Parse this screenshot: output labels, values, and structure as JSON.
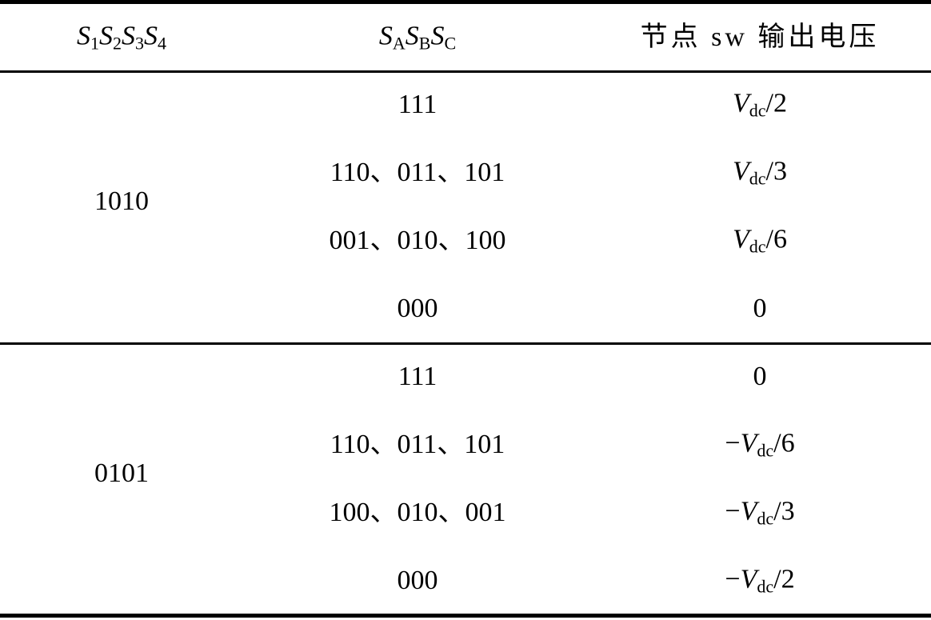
{
  "table": {
    "header": [
      [
        {
          "text": "S",
          "style": "italic"
        },
        {
          "text": "1",
          "style": "sub"
        },
        {
          "text": "S",
          "style": "italic"
        },
        {
          "text": "2",
          "style": "sub"
        },
        {
          "text": "S",
          "style": "italic"
        },
        {
          "text": "3",
          "style": "sub"
        },
        {
          "text": "S",
          "style": "italic"
        },
        {
          "text": "4",
          "style": "sub"
        }
      ],
      [
        {
          "text": "S",
          "style": "italic"
        },
        {
          "text": "A",
          "style": "sub"
        },
        {
          "text": "S",
          "style": "italic"
        },
        {
          "text": "B",
          "style": "sub"
        },
        {
          "text": "S",
          "style": "italic"
        },
        {
          "text": "C",
          "style": "sub"
        }
      ],
      "节点 sw 输出电压"
    ],
    "groups": [
      {
        "label": "1010",
        "rows": [
          {
            "code": "111",
            "voltage": [
              {
                "text": "V",
                "style": "italic"
              },
              {
                "text": "dc",
                "style": "sub"
              },
              {
                "text": "/2",
                "style": "normal"
              }
            ]
          },
          {
            "code": "110、011、101",
            "voltage": [
              {
                "text": "V",
                "style": "italic"
              },
              {
                "text": "dc",
                "style": "sub"
              },
              {
                "text": "/3",
                "style": "normal"
              }
            ]
          },
          {
            "code": "001、010、100",
            "voltage": [
              {
                "text": "V",
                "style": "italic"
              },
              {
                "text": "dc",
                "style": "sub"
              },
              {
                "text": "/6",
                "style": "normal"
              }
            ]
          },
          {
            "code": "000",
            "voltage": "0"
          }
        ]
      },
      {
        "label": "0101",
        "rows": [
          {
            "code": "111",
            "voltage": "0"
          },
          {
            "code": "110、011、101",
            "voltage": [
              {
                "text": "−",
                "style": "normal"
              },
              {
                "text": "V",
                "style": "italic"
              },
              {
                "text": "dc",
                "style": "sub"
              },
              {
                "text": "/6",
                "style": "normal"
              }
            ]
          },
          {
            "code": "100、010、001",
            "voltage": [
              {
                "text": "−",
                "style": "normal"
              },
              {
                "text": "V",
                "style": "italic"
              },
              {
                "text": "dc",
                "style": "sub"
              },
              {
                "text": "/3",
                "style": "normal"
              }
            ]
          },
          {
            "code": "000",
            "voltage": [
              {
                "text": "−",
                "style": "normal"
              },
              {
                "text": "V",
                "style": "italic"
              },
              {
                "text": "dc",
                "style": "sub"
              },
              {
                "text": "/2",
                "style": "normal"
              }
            ]
          }
        ]
      }
    ]
  }
}
